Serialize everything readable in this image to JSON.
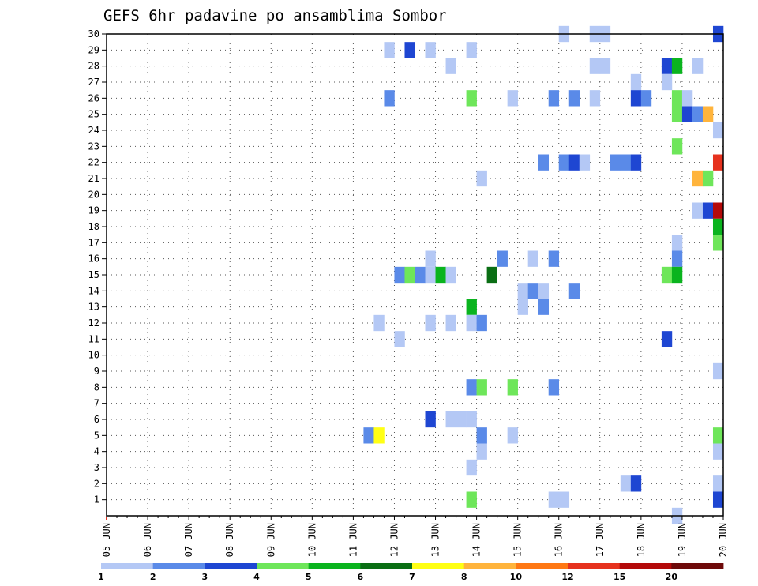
{
  "chart_data": {
    "type": "heatmap",
    "title": "GEFS 6hr padavine po ansamblima Sombor",
    "xlabel": "",
    "ylabel": "",
    "x_tick_labels": [
      "05 JUN",
      "06 JUN",
      "07 JUN",
      "08 JUN",
      "09 JUN",
      "10 JUN",
      "11 JUN",
      "12 JUN",
      "13 JUN",
      "14 JUN",
      "15 JUN",
      "16 JUN",
      "17 JUN",
      "18 JUN",
      "19 JUN",
      "20 JUN"
    ],
    "y_tick_labels": [
      "1",
      "2",
      "3",
      "4",
      "5",
      "6",
      "7",
      "8",
      "9",
      "10",
      "11",
      "12",
      "13",
      "14",
      "15",
      "16",
      "17",
      "18",
      "19",
      "20",
      "21",
      "22",
      "23",
      "24",
      "25",
      "26",
      "27",
      "28",
      "29",
      "30"
    ],
    "xlim": [
      "05 JUN 00Z",
      "20 JUN 00Z"
    ],
    "ylim": [
      0,
      30
    ],
    "time_step_hours": 6,
    "grid": true,
    "colorbar": {
      "position": "bottom",
      "tick_labels": [
        "1",
        "2",
        "3",
        "4",
        "5",
        "6",
        "7",
        "8",
        "10",
        "12",
        "15",
        "20"
      ],
      "colors": [
        "#b4c8f5",
        "#5a8ae8",
        "#1e46d2",
        "#6ee65a",
        "#0ab41e",
        "#0a6e14",
        "#ffff14",
        "#ffb43c",
        "#ff7814",
        "#e6321e",
        "#b40a0a",
        "#6e0a0a"
      ]
    },
    "cells": [
      {
        "member": 30,
        "day": 16.0,
        "level": 1
      },
      {
        "member": 30,
        "day": 16.75,
        "level": 1
      },
      {
        "member": 30,
        "day": 17.0,
        "level": 1
      },
      {
        "member": 30,
        "day": 19.75,
        "level": 3
      },
      {
        "member": 29,
        "day": 11.75,
        "level": 1
      },
      {
        "member": 29,
        "day": 12.25,
        "level": 3
      },
      {
        "member": 29,
        "day": 12.75,
        "level": 1
      },
      {
        "member": 29,
        "day": 13.75,
        "level": 1
      },
      {
        "member": 28,
        "day": 13.25,
        "level": 1
      },
      {
        "member": 28,
        "day": 16.75,
        "level": 1
      },
      {
        "member": 28,
        "day": 17.0,
        "level": 1
      },
      {
        "member": 28,
        "day": 18.5,
        "level": 3
      },
      {
        "member": 28,
        "day": 18.75,
        "level": 5
      },
      {
        "member": 28,
        "day": 19.25,
        "level": 1
      },
      {
        "member": 27,
        "day": 17.75,
        "level": 1
      },
      {
        "member": 27,
        "day": 18.5,
        "level": 1
      },
      {
        "member": 26,
        "day": 11.75,
        "level": 2
      },
      {
        "member": 26,
        "day": 13.75,
        "level": 4
      },
      {
        "member": 26,
        "day": 14.75,
        "level": 1
      },
      {
        "member": 26,
        "day": 15.75,
        "level": 2
      },
      {
        "member": 26,
        "day": 16.25,
        "level": 2
      },
      {
        "member": 26,
        "day": 16.75,
        "level": 1
      },
      {
        "member": 26,
        "day": 17.75,
        "level": 3
      },
      {
        "member": 26,
        "day": 18.0,
        "level": 2
      },
      {
        "member": 26,
        "day": 18.75,
        "level": 4
      },
      {
        "member": 26,
        "day": 19.0,
        "level": 1
      },
      {
        "member": 25,
        "day": 18.75,
        "level": 4
      },
      {
        "member": 25,
        "day": 19.0,
        "level": 3
      },
      {
        "member": 25,
        "day": 19.25,
        "level": 2
      },
      {
        "member": 25,
        "day": 19.5,
        "level": 8
      },
      {
        "member": 24,
        "day": 19.75,
        "level": 1
      },
      {
        "member": 23,
        "day": 18.75,
        "level": 4
      },
      {
        "member": 22,
        "day": 15.5,
        "level": 2
      },
      {
        "member": 22,
        "day": 16.0,
        "level": 2
      },
      {
        "member": 22,
        "day": 16.25,
        "level": 3
      },
      {
        "member": 22,
        "day": 16.5,
        "level": 1
      },
      {
        "member": 22,
        "day": 17.25,
        "level": 2
      },
      {
        "member": 22,
        "day": 17.5,
        "level": 2
      },
      {
        "member": 22,
        "day": 17.75,
        "level": 3
      },
      {
        "member": 22,
        "day": 19.75,
        "level": 10
      },
      {
        "member": 21,
        "day": 14.0,
        "level": 1
      },
      {
        "member": 21,
        "day": 19.25,
        "level": 8
      },
      {
        "member": 21,
        "day": 19.5,
        "level": 4
      },
      {
        "member": 19,
        "day": 19.25,
        "level": 1
      },
      {
        "member": 19,
        "day": 19.5,
        "level": 3
      },
      {
        "member": 19,
        "day": 19.75,
        "level": 11
      },
      {
        "member": 18,
        "day": 19.75,
        "level": 5
      },
      {
        "member": 17,
        "day": 18.75,
        "level": 1
      },
      {
        "member": 17,
        "day": 19.75,
        "level": 4
      },
      {
        "member": 16,
        "day": 12.75,
        "level": 1
      },
      {
        "member": 16,
        "day": 14.5,
        "level": 2
      },
      {
        "member": 16,
        "day": 15.25,
        "level": 1
      },
      {
        "member": 16,
        "day": 15.75,
        "level": 2
      },
      {
        "member": 16,
        "day": 18.75,
        "level": 2
      },
      {
        "member": 15,
        "day": 12.0,
        "level": 2
      },
      {
        "member": 15,
        "day": 12.25,
        "level": 4
      },
      {
        "member": 15,
        "day": 12.5,
        "level": 2
      },
      {
        "member": 15,
        "day": 12.75,
        "level": 1
      },
      {
        "member": 15,
        "day": 13.0,
        "level": 5
      },
      {
        "member": 15,
        "day": 13.25,
        "level": 1
      },
      {
        "member": 15,
        "day": 14.25,
        "level": 6
      },
      {
        "member": 15,
        "day": 18.5,
        "level": 4
      },
      {
        "member": 15,
        "day": 18.75,
        "level": 5
      },
      {
        "member": 14,
        "day": 15.0,
        "level": 1
      },
      {
        "member": 14,
        "day": 15.25,
        "level": 2
      },
      {
        "member": 14,
        "day": 15.5,
        "level": 1
      },
      {
        "member": 14,
        "day": 16.25,
        "level": 2
      },
      {
        "member": 13,
        "day": 13.75,
        "level": 5
      },
      {
        "member": 13,
        "day": 15.0,
        "level": 1
      },
      {
        "member": 13,
        "day": 15.5,
        "level": 2
      },
      {
        "member": 12,
        "day": 11.5,
        "level": 1
      },
      {
        "member": 12,
        "day": 12.75,
        "level": 1
      },
      {
        "member": 12,
        "day": 13.25,
        "level": 1
      },
      {
        "member": 12,
        "day": 13.75,
        "level": 1
      },
      {
        "member": 12,
        "day": 14.0,
        "level": 2
      },
      {
        "member": 11,
        "day": 12.0,
        "level": 1
      },
      {
        "member": 11,
        "day": 18.5,
        "level": 3
      },
      {
        "member": 9,
        "day": 19.75,
        "level": 1
      },
      {
        "member": 8,
        "day": 13.75,
        "level": 2
      },
      {
        "member": 8,
        "day": 14.0,
        "level": 4
      },
      {
        "member": 8,
        "day": 14.75,
        "level": 4
      },
      {
        "member": 8,
        "day": 15.75,
        "level": 2
      },
      {
        "member": 6,
        "day": 12.75,
        "level": 3
      },
      {
        "member": 6,
        "day": 13.25,
        "level": 1
      },
      {
        "member": 6,
        "day": 13.5,
        "level": 1
      },
      {
        "member": 6,
        "day": 13.75,
        "level": 1
      },
      {
        "member": 5,
        "day": 11.25,
        "level": 2
      },
      {
        "member": 5,
        "day": 11.5,
        "level": 7
      },
      {
        "member": 5,
        "day": 14.0,
        "level": 2
      },
      {
        "member": 5,
        "day": 14.75,
        "level": 1
      },
      {
        "member": 5,
        "day": 19.75,
        "level": 4
      },
      {
        "member": 4,
        "day": 14.0,
        "level": 1
      },
      {
        "member": 4,
        "day": 19.75,
        "level": 1
      },
      {
        "member": 3,
        "day": 13.75,
        "level": 1
      },
      {
        "member": 2,
        "day": 17.5,
        "level": 1
      },
      {
        "member": 2,
        "day": 17.75,
        "level": 3
      },
      {
        "member": 2,
        "day": 19.75,
        "level": 1
      },
      {
        "member": 1,
        "day": 13.75,
        "level": 4
      },
      {
        "member": 1,
        "day": 15.75,
        "level": 1
      },
      {
        "member": 1,
        "day": 16.0,
        "level": 1
      },
      {
        "member": 1,
        "day": 19.75,
        "level": 3
      },
      {
        "member": 0,
        "day": 18.75,
        "level": 1
      }
    ]
  }
}
